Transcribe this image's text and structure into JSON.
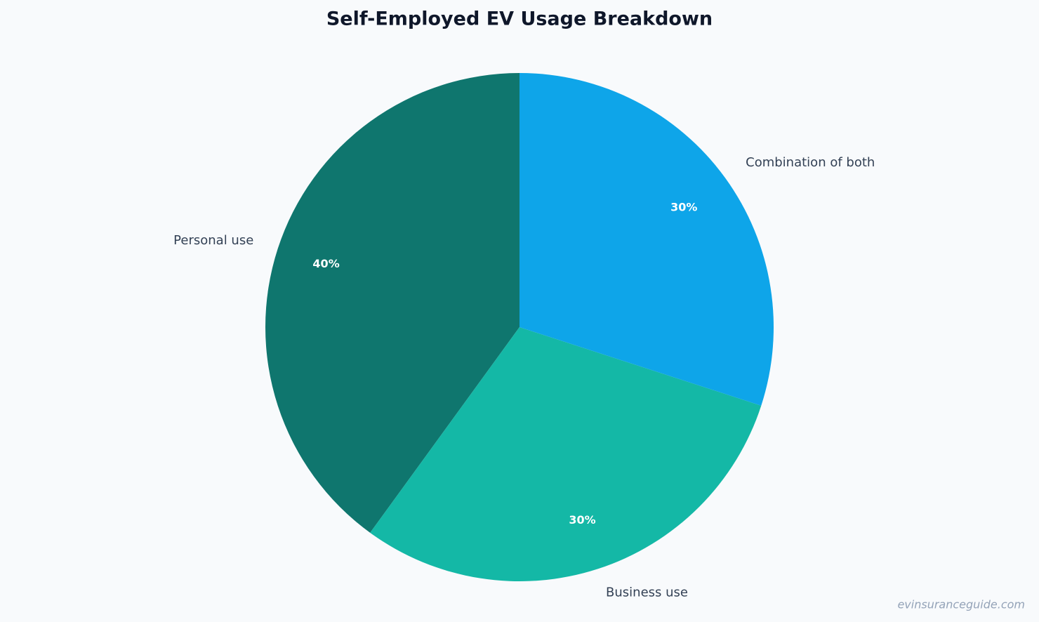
{
  "chart_data": {
    "type": "pie",
    "title": "Self-Employed EV Usage Breakdown",
    "categories": [
      "Personal use",
      "Business use",
      "Combination of both"
    ],
    "values": [
      40,
      30,
      30
    ],
    "value_labels": [
      "40%",
      "30%",
      "30%"
    ],
    "colors": [
      "#0f766e",
      "#14b8a6",
      "#0ea5e9"
    ],
    "start_angle": 90,
    "watermark": "evinsuranceguide.com"
  }
}
